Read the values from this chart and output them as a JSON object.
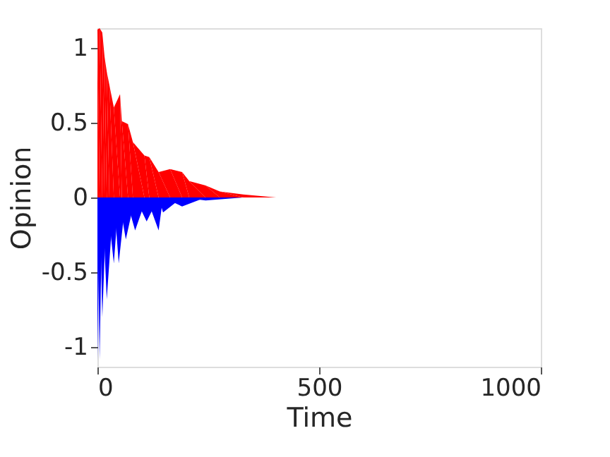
{
  "chart_data": {
    "type": "area",
    "xlabel": "Time",
    "ylabel": "Opinion",
    "xlim": [
      0,
      1000
    ],
    "ylim": [
      -1.13,
      1.13
    ],
    "xticks": [
      0,
      500,
      1000
    ],
    "yticks": [
      -1,
      -0.5,
      0,
      0.5,
      1
    ],
    "grid": false,
    "series": [
      {
        "color": "#ff0000",
        "x": [
          0,
          5,
          11,
          16,
          21,
          27,
          37,
          51,
          55,
          69,
          80,
          106,
          117,
          138,
          164,
          191,
          207,
          244,
          276,
          329,
          403,
          1000
        ],
        "values": [
          1.12,
          1.13,
          1.1,
          0.94,
          0.84,
          0.75,
          0.6,
          0.69,
          0.51,
          0.49,
          0.37,
          0.28,
          0.27,
          0.17,
          0.19,
          0.17,
          0.11,
          0.08,
          0.04,
          0.02,
          0,
          0
        ]
      },
      {
        "color": "#0000ff",
        "x": [
          0,
          5,
          11,
          21,
          37,
          48,
          64,
          85,
          111,
          138,
          148,
          191,
          244,
          329,
          1000
        ],
        "values": [
          -1.09,
          -1.08,
          -0.8,
          -0.68,
          -0.44,
          -0.44,
          -0.28,
          -0.22,
          -0.16,
          -0.22,
          -0.1,
          -0.06,
          -0.02,
          0,
          0
        ]
      }
    ]
  }
}
